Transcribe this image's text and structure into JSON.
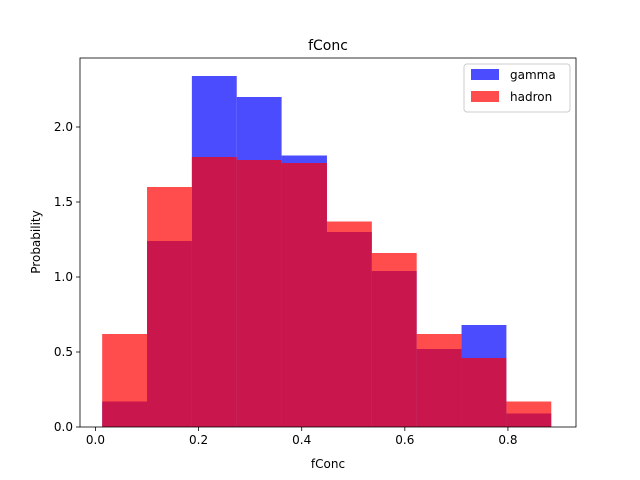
{
  "chart_data": {
    "type": "bar",
    "title": "fConc",
    "xlabel": "fConc",
    "ylabel": "Probability",
    "xlim": [
      -0.03,
      0.932
    ],
    "ylim": [
      0,
      2.46
    ],
    "xticks": [
      0.0,
      0.2,
      0.4,
      0.6,
      0.8
    ],
    "xtick_labels": [
      "0.0",
      "0.2",
      "0.4",
      "0.6",
      "0.8"
    ],
    "yticks": [
      0.0,
      0.5,
      1.0,
      1.5,
      2.0
    ],
    "ytick_labels": [
      "0.0",
      "0.5",
      "1.0",
      "1.5",
      "2.0"
    ],
    "bin_edges": [
      0.013,
      0.1,
      0.187,
      0.274,
      0.361,
      0.449,
      0.536,
      0.623,
      0.71,
      0.797,
      0.884
    ],
    "legend_position": "top-right",
    "grid": false,
    "series": [
      {
        "name": "gamma",
        "color": "#0000ff",
        "alpha": 0.7,
        "values": [
          0.17,
          1.24,
          2.34,
          2.2,
          1.81,
          1.3,
          1.04,
          0.52,
          0.68,
          0.09
        ]
      },
      {
        "name": "hadron",
        "color": "#ff0000",
        "alpha": 0.7,
        "values": [
          0.62,
          1.6,
          1.8,
          1.78,
          1.76,
          1.37,
          1.16,
          0.62,
          0.46,
          0.17
        ]
      }
    ]
  }
}
